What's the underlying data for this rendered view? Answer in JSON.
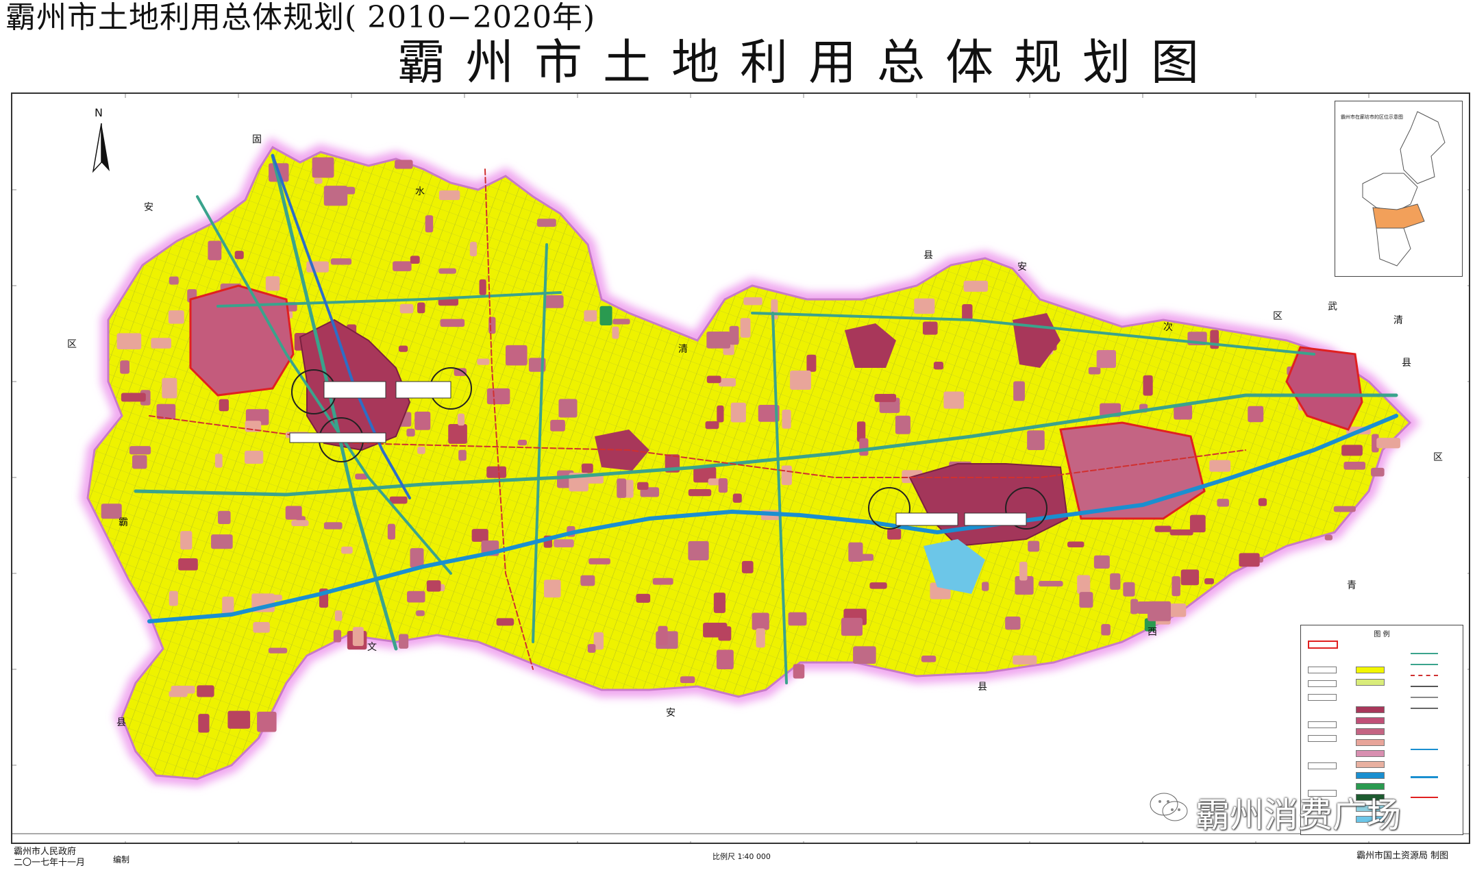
{
  "header": {
    "subtitle": "霸州市土地利用总体规划(  2010−2020年)",
    "title": "霸州市土地利用总体规划图"
  },
  "map": {
    "north_label": "N",
    "place_labels": [
      "固",
      "安",
      "水",
      "县",
      "清",
      "安",
      "次",
      "区",
      "武",
      "清",
      "区",
      "县",
      "区",
      "霸",
      "文",
      "安",
      "县",
      "县",
      "西",
      "青"
    ],
    "colors": {
      "farmland": "#f2f600",
      "town": "#b8435f",
      "settlement": "#c06a86",
      "planned_construction": "#e8a59a",
      "water": "#1a8fd0",
      "road": "#3aa38c",
      "boundary_glow": "#f0a8f0",
      "planning_boundary": "#e02020"
    },
    "inset_title": "霸州市在廊坊市的区位示意图",
    "legend_title": "图 例"
  },
  "footer": {
    "left_line1": "霸州市人民政府",
    "left_line2": "二〇一七年十一月",
    "left_suffix": "编制",
    "scale": "比例尺 1∶40 000",
    "right": "霸州市国土资源局  制图"
  },
  "watermark": {
    "text": "霸州消费广场",
    "icon": "wechat-icon"
  }
}
